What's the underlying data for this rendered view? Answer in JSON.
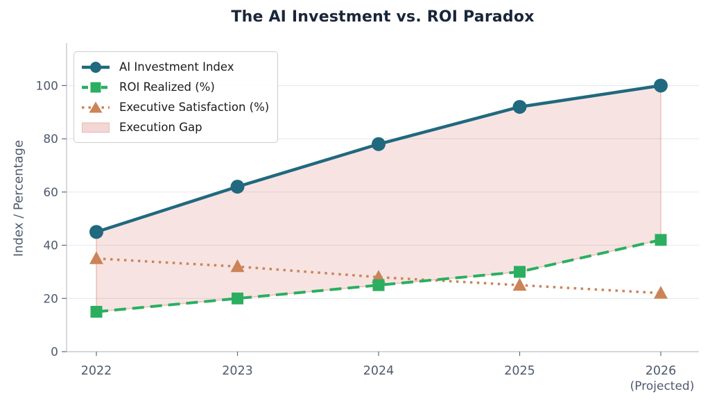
{
  "title": "The AI Investment vs. ROI Paradox",
  "chart_data": {
    "type": "line",
    "categories": [
      "2022",
      "2023",
      "2024",
      "2025",
      "2026"
    ],
    "xtick_note_last": "(Projected)",
    "series": [
      {
        "name": "AI Investment Index",
        "values": [
          45,
          62,
          78,
          92,
          100
        ],
        "color": "#20697e",
        "style": "solid",
        "marker": "circle",
        "line_width": 4.5
      },
      {
        "name": "ROI Realized (%)",
        "values": [
          15,
          20,
          25,
          30,
          42
        ],
        "color": "#2bae60",
        "style": "dashed",
        "marker": "square",
        "line_width": 4
      },
      {
        "name": "Executive Satisfaction (%)",
        "values": [
          35,
          32,
          28,
          25,
          22
        ],
        "color": "#cb8457",
        "style": "dotted",
        "marker": "triangle",
        "line_width": 3.5
      }
    ],
    "area": {
      "name": "Execution Gap",
      "between": [
        "AI Investment Index",
        "ROI Realized (%)"
      ],
      "fill": "#cd6155",
      "fill_opacity": 0.17,
      "edge_opacity": 0.35
    },
    "ylabel": "Index / Percentage",
    "yticks": [
      0,
      20,
      40,
      60,
      80,
      100
    ],
    "ylim": [
      0,
      116
    ],
    "grid": "horizontal",
    "legend_position": "upper-left"
  },
  "colors": {
    "background": "#ffffff",
    "title_text": "#1a2639",
    "axis_text": "#4e5a6e",
    "tick_mark": "#5d6880",
    "spine": "#c8cbd2",
    "grid": "#e8eaee",
    "legend_text": "#1b1b1b",
    "legend_border": "#cccccc"
  }
}
